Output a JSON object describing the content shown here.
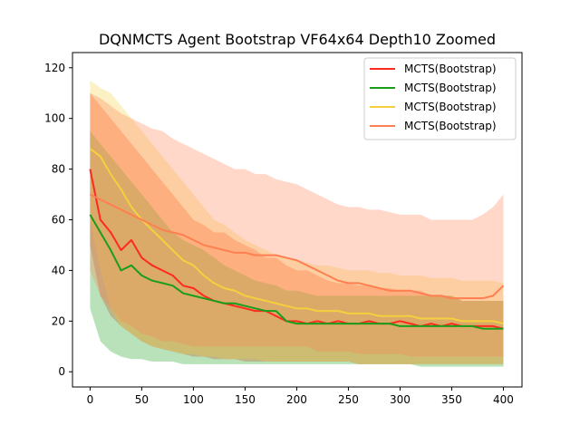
{
  "chart_data": {
    "type": "line",
    "title": "DQNMCTS Agent Bootstrap VF64x64 Depth10 Zoomed",
    "xlabel": "",
    "ylabel": "",
    "xlim": [
      -17,
      418
    ],
    "ylim": [
      -6,
      126
    ],
    "xticks": [
      0,
      50,
      100,
      150,
      200,
      250,
      300,
      350,
      400
    ],
    "yticks": [
      0,
      20,
      40,
      60,
      80,
      100,
      120
    ],
    "grid": false,
    "legend_position": "top-right",
    "series": [
      {
        "name": "MCTS(Bootstrap)",
        "color": "#ff2a1f",
        "x": [
          0,
          10,
          20,
          30,
          40,
          50,
          60,
          70,
          80,
          90,
          100,
          110,
          120,
          130,
          140,
          150,
          160,
          170,
          180,
          190,
          200,
          210,
          220,
          230,
          240,
          250,
          260,
          270,
          280,
          290,
          300,
          310,
          320,
          330,
          340,
          350,
          360,
          370,
          380,
          390,
          400
        ],
        "values": [
          80,
          60,
          55,
          48,
          52,
          45,
          42,
          40,
          38,
          34,
          33,
          30,
          28,
          27,
          26,
          25,
          24,
          24,
          22,
          20,
          20,
          19,
          20,
          19,
          20,
          19,
          19,
          20,
          19,
          19,
          20,
          19,
          18,
          19,
          18,
          19,
          18,
          18,
          18,
          18,
          17
        ],
        "lower": [
          50,
          30,
          22,
          18,
          15,
          12,
          10,
          9,
          8,
          7,
          6,
          6,
          5,
          5,
          5,
          4,
          4,
          4,
          4,
          4,
          4,
          4,
          4,
          4,
          4,
          4,
          3,
          3,
          3,
          3,
          3,
          3,
          3,
          3,
          3,
          3,
          3,
          3,
          3,
          3,
          3
        ],
        "upper": [
          110,
          105,
          100,
          95,
          90,
          85,
          80,
          75,
          70,
          65,
          60,
          58,
          55,
          55,
          52,
          50,
          48,
          45,
          45,
          42,
          40,
          40,
          38,
          36,
          35,
          35,
          34,
          34,
          33,
          33,
          32,
          32,
          32,
          30,
          30,
          30,
          28,
          28,
          28,
          28,
          28
        ]
      },
      {
        "name": "MCTS(Bootstrap)",
        "color": "#1a9e1a",
        "x": [
          0,
          10,
          20,
          30,
          40,
          50,
          60,
          70,
          80,
          90,
          100,
          110,
          120,
          130,
          140,
          150,
          160,
          170,
          180,
          190,
          200,
          210,
          220,
          230,
          240,
          250,
          260,
          270,
          280,
          290,
          300,
          310,
          320,
          330,
          340,
          350,
          360,
          370,
          380,
          390,
          400
        ],
        "values": [
          62,
          55,
          48,
          40,
          42,
          38,
          36,
          35,
          34,
          31,
          30,
          29,
          28,
          27,
          27,
          26,
          25,
          24,
          24,
          20,
          19,
          19,
          19,
          19,
          19,
          19,
          19,
          19,
          19,
          19,
          18,
          18,
          18,
          18,
          18,
          18,
          18,
          18,
          17,
          17,
          17
        ],
        "lower": [
          25,
          12,
          8,
          6,
          5,
          5,
          4,
          4,
          4,
          3,
          3,
          3,
          3,
          3,
          3,
          3,
          3,
          3,
          3,
          3,
          3,
          3,
          3,
          3,
          3,
          3,
          3,
          3,
          3,
          3,
          3,
          3,
          2,
          2,
          2,
          2,
          2,
          2,
          2,
          2,
          2
        ],
        "upper": [
          95,
          90,
          85,
          80,
          75,
          70,
          65,
          60,
          55,
          52,
          50,
          48,
          45,
          42,
          40,
          38,
          36,
          35,
          34,
          32,
          32,
          31,
          30,
          30,
          30,
          30,
          30,
          30,
          30,
          30,
          30,
          30,
          30,
          30,
          30,
          30,
          28,
          28,
          28,
          28,
          28
        ]
      },
      {
        "name": "MCTS(Bootstrap)",
        "color": "#f4d03f",
        "x": [
          0,
          10,
          20,
          30,
          40,
          50,
          60,
          70,
          80,
          90,
          100,
          110,
          120,
          130,
          140,
          150,
          160,
          170,
          180,
          190,
          200,
          210,
          220,
          230,
          240,
          250,
          260,
          270,
          280,
          290,
          300,
          310,
          320,
          330,
          340,
          350,
          360,
          370,
          380,
          390,
          400
        ],
        "values": [
          88,
          85,
          78,
          72,
          65,
          60,
          56,
          52,
          48,
          44,
          42,
          38,
          35,
          33,
          32,
          30,
          29,
          28,
          27,
          26,
          25,
          25,
          24,
          24,
          24,
          23,
          23,
          23,
          22,
          22,
          22,
          22,
          21,
          21,
          21,
          21,
          20,
          20,
          20,
          20,
          19
        ],
        "lower": [
          60,
          40,
          25,
          18,
          15,
          12,
          10,
          9,
          8,
          7,
          7,
          6,
          6,
          5,
          5,
          5,
          5,
          4,
          4,
          4,
          4,
          4,
          4,
          4,
          4,
          4,
          3,
          3,
          3,
          3,
          3,
          3,
          3,
          3,
          3,
          3,
          3,
          3,
          3,
          3,
          3
        ],
        "upper": [
          115,
          112,
          110,
          105,
          100,
          95,
          90,
          85,
          80,
          75,
          70,
          65,
          60,
          58,
          55,
          52,
          50,
          48,
          46,
          45,
          44,
          43,
          42,
          42,
          41,
          40,
          40,
          40,
          39,
          39,
          38,
          38,
          38,
          37,
          37,
          37,
          36,
          36,
          36,
          36,
          35
        ]
      },
      {
        "name": "MCTS(Bootstrap)",
        "color": "#ff7f50",
        "x": [
          0,
          10,
          20,
          30,
          40,
          50,
          60,
          70,
          80,
          90,
          100,
          110,
          120,
          130,
          140,
          150,
          160,
          170,
          180,
          190,
          200,
          210,
          220,
          230,
          240,
          250,
          260,
          270,
          280,
          290,
          300,
          310,
          320,
          330,
          340,
          350,
          360,
          370,
          380,
          390,
          400
        ],
        "values": [
          70,
          68,
          66,
          64,
          62,
          60,
          58,
          56,
          55,
          54,
          52,
          50,
          49,
          48,
          47,
          47,
          46,
          46,
          46,
          45,
          44,
          42,
          40,
          38,
          36,
          35,
          35,
          34,
          33,
          32,
          32,
          32,
          31,
          30,
          30,
          29,
          29,
          29,
          29,
          30,
          34
        ],
        "lower": [
          40,
          30,
          25,
          20,
          18,
          15,
          14,
          12,
          12,
          11,
          10,
          10,
          10,
          10,
          10,
          10,
          10,
          10,
          10,
          10,
          10,
          10,
          8,
          8,
          8,
          8,
          7,
          7,
          7,
          7,
          7,
          6,
          6,
          6,
          6,
          6,
          6,
          6,
          6,
          6,
          6
        ],
        "upper": [
          110,
          108,
          105,
          102,
          100,
          98,
          96,
          95,
          92,
          90,
          88,
          86,
          84,
          82,
          80,
          80,
          78,
          78,
          76,
          75,
          74,
          72,
          70,
          68,
          66,
          65,
          65,
          64,
          64,
          63,
          62,
          62,
          62,
          60,
          60,
          60,
          60,
          60,
          62,
          65,
          70
        ]
      }
    ]
  }
}
